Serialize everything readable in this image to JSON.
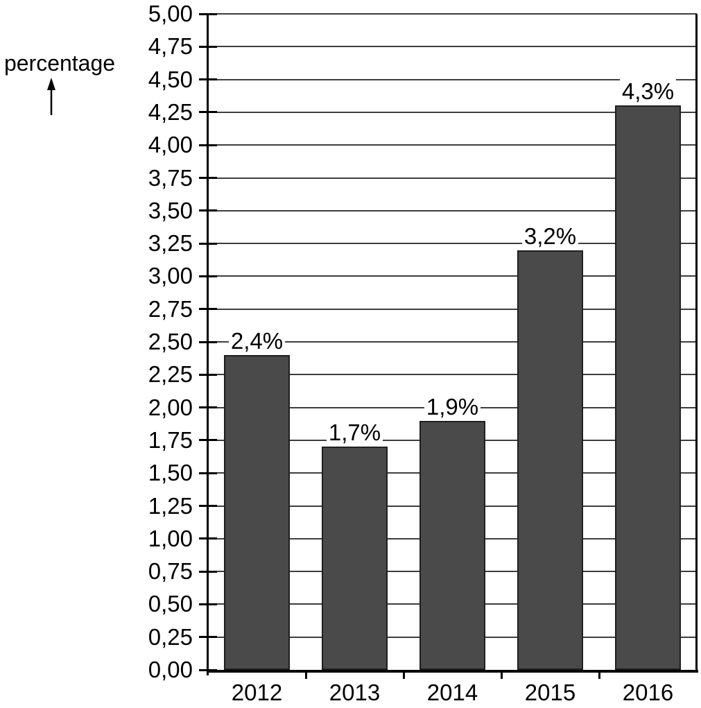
{
  "chart_data": {
    "type": "bar",
    "title": "",
    "ylabel": "percentage",
    "xlabel": "",
    "categories": [
      "2012",
      "2013",
      "2014",
      "2015",
      "2016"
    ],
    "values": [
      2.4,
      1.7,
      1.9,
      3.2,
      4.3
    ],
    "bar_value_labels": [
      "2,4%",
      "1,7%",
      "1,9%",
      "3,2%",
      "4,3%"
    ],
    "ylim": [
      0,
      5
    ],
    "y_tick_step": 0.25,
    "y_tick_labels": [
      "5,00",
      "4,75",
      "4,50",
      "4,25",
      "4,00",
      "3,75",
      "3,50",
      "3,25",
      "3,00",
      "2,75",
      "2,50",
      "2,25",
      "2,00",
      "1,75",
      "1,50",
      "1,25",
      "1,00",
      "0,75",
      "0,50",
      "0,25",
      "0,00"
    ],
    "decimal_separator": ",",
    "grid": "horizontal",
    "legend_visible": false
  },
  "colors": {
    "bar_fill": "#4a4a4a",
    "bar_border": "#1f1f1f",
    "gridline": "#3d3d3d",
    "axis": "#000000",
    "background": "#ffffff",
    "text": "#000000"
  }
}
